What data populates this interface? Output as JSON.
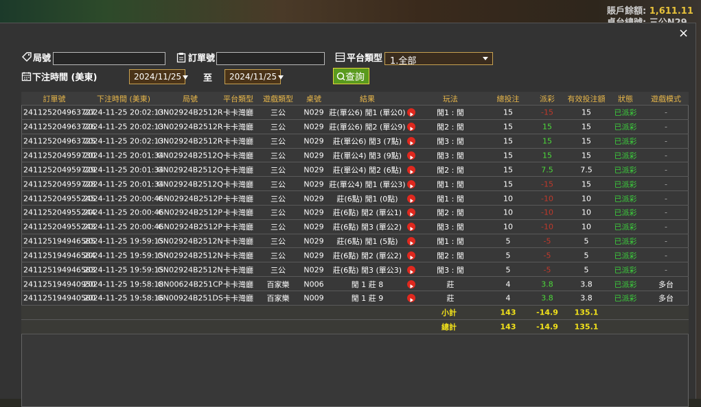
{
  "background": {
    "balance_label": "賬戶餘額:",
    "balance": "1,611.11",
    "table_label": "桌台總號: 三公N29"
  },
  "close": "×",
  "filters": {
    "round_label": "局號",
    "order_label": "訂單號",
    "platform_label": "平台類型",
    "platform_value": "1.全部",
    "time_label": "下注時間 (美東)",
    "date_from": "2024/11/25",
    "to_label": "至",
    "date_to": "2024/11/25",
    "search": "查詢"
  },
  "table": {
    "columns": [
      "訂單號",
      "下注時間 (美東)",
      "局號",
      "平台類型",
      "遊戲類型",
      "桌號",
      "結果",
      "玩法",
      "總投注",
      "派彩",
      "有效投注額",
      "狀態",
      "遊戲模式"
    ],
    "rows": [
      [
        "241125204963727",
        "2024-11-25 20:02:13",
        "GN02924B2512R",
        "卡卡灣廳",
        "三公",
        "N029",
        "莊(單公6) 閒1 (單公0)",
        "閒1 : 閒",
        "15",
        "-15",
        "15",
        "已派彩",
        "-"
      ],
      [
        "241125204963726",
        "2024-11-25 20:02:13",
        "GN02924B2512R",
        "卡卡灣廳",
        "三公",
        "N029",
        "莊(單公6) 閒2 (單公9)",
        "閒2 : 閒",
        "15",
        "15",
        "15",
        "已派彩",
        "-"
      ],
      [
        "241125204963725",
        "2024-11-25 20:02:13",
        "GN02924B2512R",
        "卡卡灣廳",
        "三公",
        "N029",
        "莊(單公6) 閒3 (7點)",
        "閒3 : 閒",
        "15",
        "15",
        "15",
        "已派彩",
        "-"
      ],
      [
        "241125204959730",
        "2024-11-25 20:01:34",
        "GN02924B2512Q",
        "卡卡灣廳",
        "三公",
        "N029",
        "莊(單公4) 閒3 (9點)",
        "閒3 : 閒",
        "15",
        "15",
        "15",
        "已派彩",
        "-"
      ],
      [
        "241125204959729",
        "2024-11-25 20:01:34",
        "GN02924B2512Q",
        "卡卡灣廳",
        "三公",
        "N029",
        "莊(單公4) 閒2 (6點)",
        "閒2 : 閒",
        "15",
        "7.5",
        "7.5",
        "已派彩",
        "-"
      ],
      [
        "241125204959728",
        "2024-11-25 20:01:34",
        "GN02924B2512Q",
        "卡卡灣廳",
        "三公",
        "N029",
        "莊(單公4) 閒1 (單公3)",
        "閒1 : 閒",
        "15",
        "-15",
        "15",
        "已派彩",
        "-"
      ],
      [
        "241125204955245",
        "2024-11-25 20:00:46",
        "GN02924B2512P",
        "卡卡灣廳",
        "三公",
        "N029",
        "莊(6點) 閒1 (0點)",
        "閒1 : 閒",
        "10",
        "-10",
        "10",
        "已派彩",
        "-"
      ],
      [
        "241125204955244",
        "2024-11-25 20:00:46",
        "GN02924B2512P",
        "卡卡灣廳",
        "三公",
        "N029",
        "莊(6點) 閒2 (單公1)",
        "閒2 : 閒",
        "10",
        "-10",
        "10",
        "已派彩",
        "-"
      ],
      [
        "241125204955243",
        "2024-11-25 20:00:46",
        "GN02924B2512P",
        "卡卡灣廳",
        "三公",
        "N029",
        "莊(6點) 閒3 (單公2)",
        "閒3 : 閒",
        "10",
        "-10",
        "10",
        "已派彩",
        "-"
      ],
      [
        "241125194946585",
        "2024-11-25 19:59:15",
        "GN02924B2512N",
        "卡卡灣廳",
        "三公",
        "N029",
        "莊(6點) 閒1 (5點)",
        "閒1 : 閒",
        "5",
        "-5",
        "5",
        "已派彩",
        "-"
      ],
      [
        "241125194946584",
        "2024-11-25 19:59:15",
        "GN02924B2512N",
        "卡卡灣廳",
        "三公",
        "N029",
        "莊(6點) 閒2 (單公2)",
        "閒2 : 閒",
        "5",
        "-5",
        "5",
        "已派彩",
        "-"
      ],
      [
        "241125194946583",
        "2024-11-25 19:59:15",
        "GN02924B2512N",
        "卡卡灣廳",
        "三公",
        "N029",
        "莊(6點) 閒3 (單公3)",
        "閒3 : 閒",
        "5",
        "-5",
        "5",
        "已派彩",
        "-"
      ],
      [
        "241125194940950",
        "2024-11-25 19:58:18",
        "GN00624B251CP",
        "卡卡灣廳",
        "百家樂",
        "N006",
        "閒 1 莊 8",
        "莊",
        "4",
        "3.8",
        "3.8",
        "已派彩",
        "多台"
      ],
      [
        "241125194940580",
        "2024-11-25 19:58:16",
        "GN00924B251DS",
        "卡卡灣廳",
        "百家樂",
        "N009",
        "閒 1 莊 9",
        "莊",
        "4",
        "3.8",
        "3.8",
        "已派彩",
        "多台"
      ]
    ],
    "summary": [
      {
        "label": "小計",
        "total_bet": "143",
        "payout": "-14.9",
        "valid_bet": "135.1"
      },
      {
        "label": "總計",
        "total_bet": "143",
        "payout": "-14.9",
        "valid_bet": "135.1"
      }
    ]
  }
}
